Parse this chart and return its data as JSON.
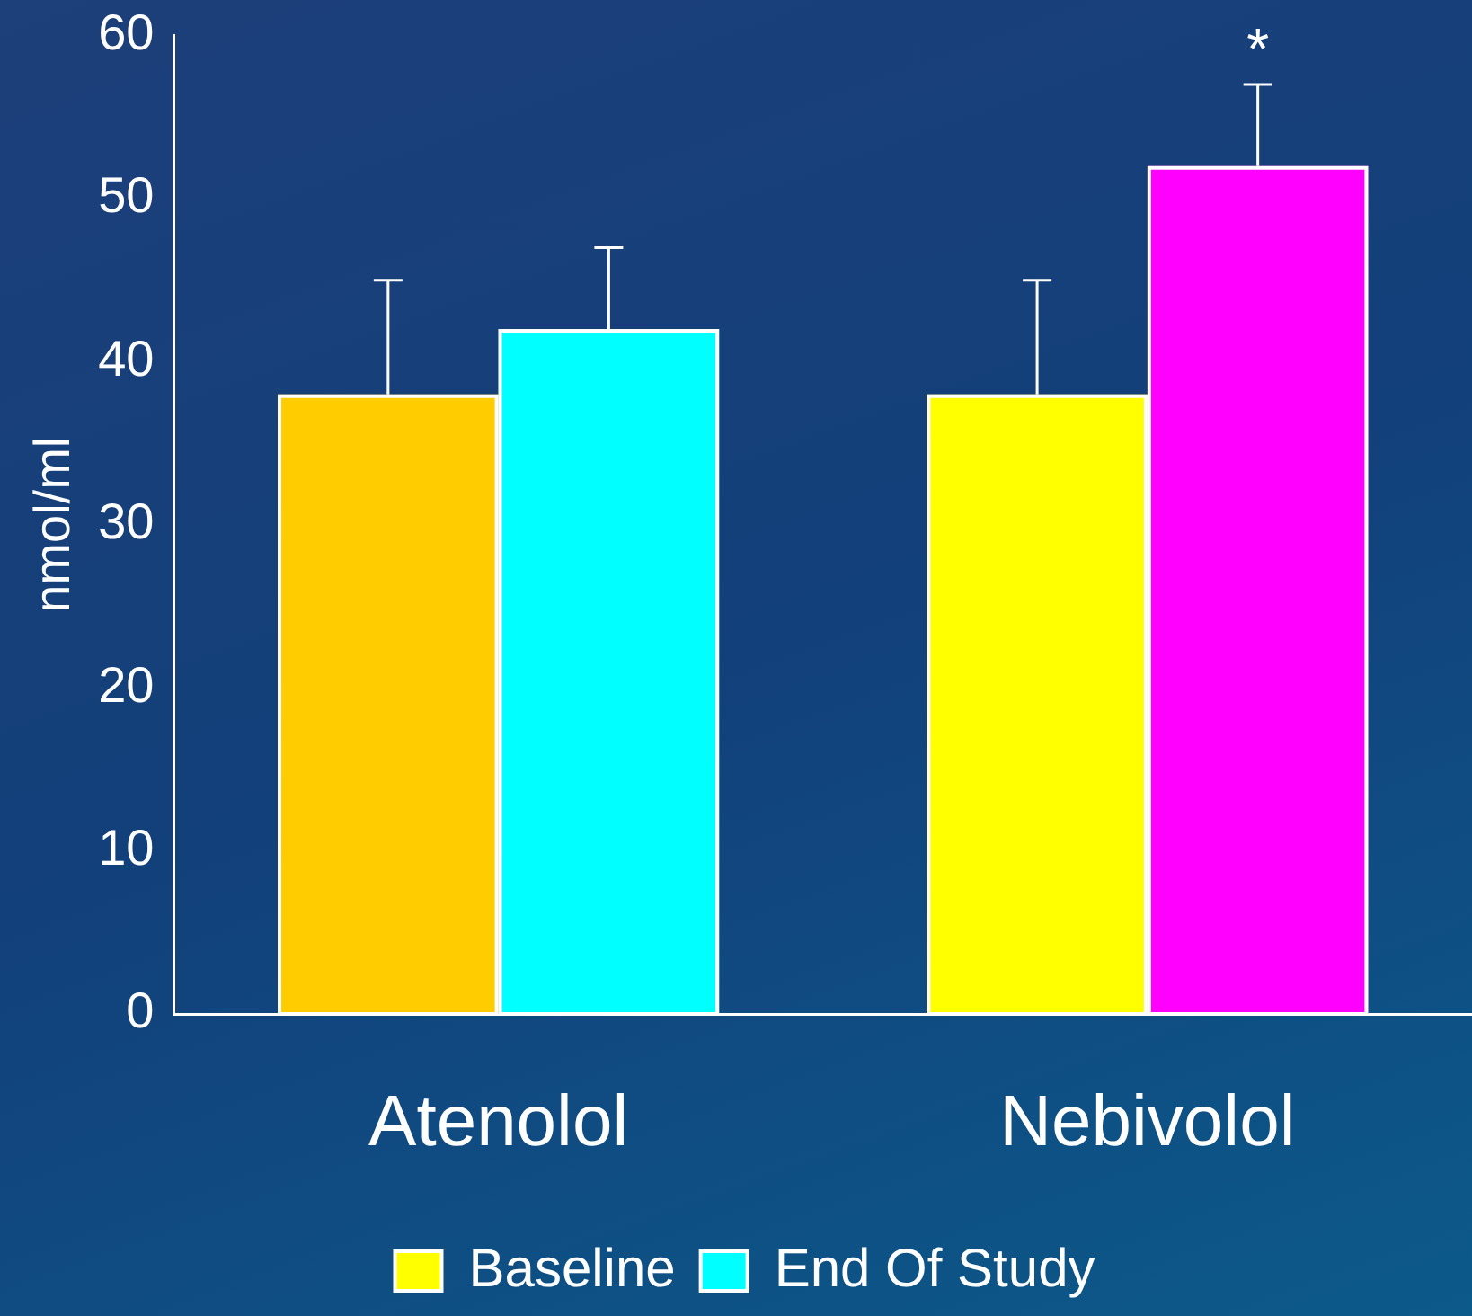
{
  "chart_data": {
    "type": "bar",
    "ylabel": "nmol/ml",
    "categories": [
      "Atenolol",
      "Nebivolol"
    ],
    "series": [
      {
        "name": "Baseline",
        "color": "#ffff00",
        "colors": [
          "#ffcc00",
          "#ffff00"
        ],
        "values": [
          38,
          38
        ],
        "errors": [
          [
            38,
            45
          ],
          [
            38,
            45
          ]
        ]
      },
      {
        "name": "End Of Study",
        "color": "#00ffff",
        "colors": [
          "#00ffff",
          "#ff00ff"
        ],
        "values": [
          42,
          52
        ],
        "errors": [
          [
            42,
            47
          ],
          [
            52,
            57
          ]
        ]
      }
    ],
    "ylim": [
      0,
      60
    ],
    "yticks": [
      0,
      10,
      20,
      30,
      40,
      50,
      60
    ],
    "grid": false,
    "legend": "bottom",
    "annotations": [
      "*"
    ]
  }
}
